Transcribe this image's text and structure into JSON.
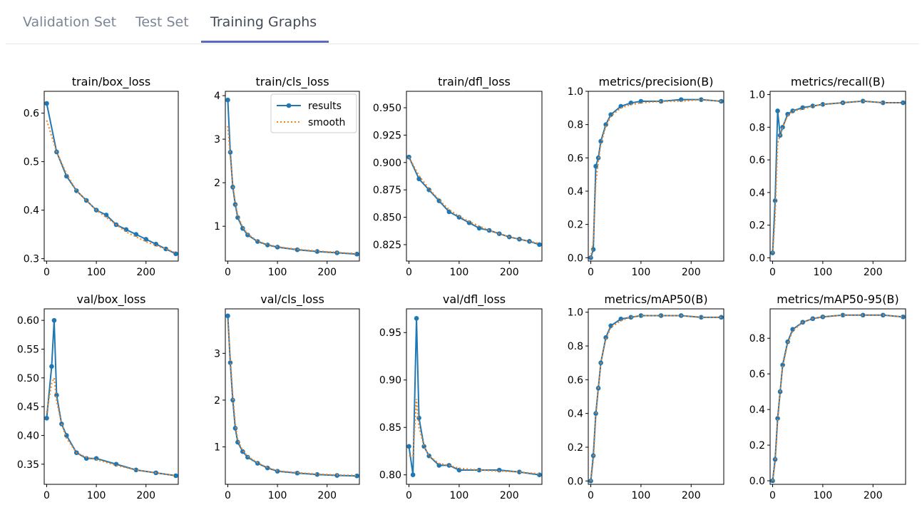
{
  "tabs": [
    {
      "label": "Validation Set"
    },
    {
      "label": "Test Set"
    },
    {
      "label": "Training Graphs",
      "active": true
    }
  ],
  "colors": {
    "results": "#1f77b4",
    "smooth": "#ff7f0e",
    "tab_active_underline": "#5b69c3"
  },
  "chart_data": [
    {
      "type": "line",
      "title": "train/box_loss",
      "xlim": [
        -5,
        265
      ],
      "ylim": [
        0.295,
        0.645
      ],
      "xticks": [
        "0",
        "100",
        "200"
      ],
      "yticks": [
        "0.3",
        "0.4",
        "0.5",
        "0.6"
      ],
      "x": [
        0,
        20,
        40,
        60,
        80,
        100,
        120,
        140,
        160,
        180,
        200,
        220,
        240,
        260
      ],
      "series": [
        {
          "name": "results",
          "values": [
            0.62,
            0.52,
            0.47,
            0.44,
            0.42,
            0.4,
            0.39,
            0.37,
            0.36,
            0.35,
            0.34,
            0.33,
            0.32,
            0.31
          ]
        },
        {
          "name": "smooth",
          "values": [
            0.585,
            0.52,
            0.475,
            0.44,
            0.42,
            0.4,
            0.385,
            0.37,
            0.355,
            0.345,
            0.335,
            0.327,
            0.32,
            0.312
          ]
        }
      ]
    },
    {
      "type": "line",
      "title": "train/cls_loss",
      "xlim": [
        -5,
        265
      ],
      "ylim": [
        0.2,
        4.1
      ],
      "xticks": [
        "0",
        "100",
        "200"
      ],
      "yticks": [
        "1",
        "2",
        "3",
        "4"
      ],
      "legend": {
        "entries": [
          "results",
          "smooth"
        ],
        "position": "upper right"
      },
      "x": [
        0,
        5,
        10,
        15,
        20,
        30,
        40,
        60,
        80,
        100,
        140,
        180,
        220,
        260
      ],
      "series": [
        {
          "name": "results",
          "values": [
            3.9,
            2.7,
            1.9,
            1.5,
            1.2,
            0.95,
            0.8,
            0.65,
            0.57,
            0.52,
            0.46,
            0.42,
            0.39,
            0.36
          ]
        },
        {
          "name": "smooth",
          "values": [
            3.3,
            2.6,
            1.95,
            1.55,
            1.25,
            0.98,
            0.82,
            0.66,
            0.58,
            0.53,
            0.47,
            0.43,
            0.4,
            0.37
          ]
        }
      ]
    },
    {
      "type": "line",
      "title": "train/dfl_loss",
      "xlim": [
        -5,
        265
      ],
      "ylim": [
        0.81,
        0.965
      ],
      "xticks": [
        "0",
        "100",
        "200"
      ],
      "yticks": [
        "0.825",
        "0.850",
        "0.875",
        "0.900",
        "0.925",
        "0.950"
      ],
      "x": [
        0,
        20,
        40,
        60,
        80,
        100,
        120,
        140,
        160,
        180,
        200,
        220,
        240,
        260
      ],
      "series": [
        {
          "name": "results",
          "values": [
            0.905,
            0.885,
            0.875,
            0.865,
            0.855,
            0.85,
            0.845,
            0.84,
            0.838,
            0.835,
            0.832,
            0.83,
            0.828,
            0.825
          ]
        },
        {
          "name": "smooth",
          "values": [
            0.905,
            0.888,
            0.876,
            0.866,
            0.857,
            0.851,
            0.846,
            0.842,
            0.838,
            0.835,
            0.832,
            0.83,
            0.828,
            0.826
          ]
        }
      ]
    },
    {
      "type": "line",
      "title": "metrics/precision(B)",
      "xlim": [
        -5,
        265
      ],
      "ylim": [
        -0.02,
        1.0
      ],
      "xticks": [
        "0",
        "100",
        "200"
      ],
      "yticks": [
        "0.0",
        "0.2",
        "0.4",
        "0.6",
        "0.8",
        "1.0"
      ],
      "x": [
        0,
        5,
        10,
        15,
        20,
        30,
        40,
        60,
        80,
        100,
        140,
        180,
        220,
        260
      ],
      "series": [
        {
          "name": "results",
          "values": [
            0.0,
            0.05,
            0.55,
            0.6,
            0.7,
            0.8,
            0.86,
            0.91,
            0.93,
            0.94,
            0.94,
            0.95,
            0.95,
            0.94
          ]
        },
        {
          "name": "smooth",
          "values": [
            0.0,
            0.1,
            0.45,
            0.58,
            0.68,
            0.79,
            0.85,
            0.9,
            0.92,
            0.93,
            0.94,
            0.94,
            0.95,
            0.94
          ]
        }
      ]
    },
    {
      "type": "line",
      "title": "metrics/recall(B)",
      "xlim": [
        -5,
        265
      ],
      "ylim": [
        -0.02,
        1.02
      ],
      "xticks": [
        "0",
        "100",
        "200"
      ],
      "yticks": [
        "0.0",
        "0.2",
        "0.4",
        "0.6",
        "0.8",
        "1.0"
      ],
      "x": [
        0,
        5,
        10,
        15,
        20,
        30,
        40,
        60,
        80,
        100,
        140,
        180,
        220,
        260
      ],
      "series": [
        {
          "name": "results",
          "values": [
            0.03,
            0.35,
            0.9,
            0.75,
            0.8,
            0.88,
            0.9,
            0.92,
            0.93,
            0.94,
            0.95,
            0.96,
            0.95,
            0.95
          ]
        },
        {
          "name": "smooth",
          "values": [
            0.03,
            0.25,
            0.7,
            0.75,
            0.8,
            0.87,
            0.9,
            0.91,
            0.93,
            0.94,
            0.95,
            0.96,
            0.95,
            0.95
          ]
        }
      ]
    },
    {
      "type": "line",
      "title": "val/box_loss",
      "xlim": [
        -5,
        265
      ],
      "ylim": [
        0.315,
        0.62
      ],
      "xticks": [
        "0",
        "100",
        "200"
      ],
      "yticks": [
        "0.35",
        "0.40",
        "0.45",
        "0.50",
        "0.55",
        "0.60"
      ],
      "x": [
        0,
        10,
        15,
        20,
        30,
        40,
        60,
        80,
        100,
        140,
        180,
        220,
        260
      ],
      "series": [
        {
          "name": "results",
          "values": [
            0.43,
            0.52,
            0.6,
            0.47,
            0.42,
            0.4,
            0.37,
            0.36,
            0.36,
            0.35,
            0.34,
            0.335,
            0.33
          ]
        },
        {
          "name": "smooth",
          "values": [
            0.44,
            0.49,
            0.5,
            0.46,
            0.42,
            0.395,
            0.37,
            0.362,
            0.358,
            0.348,
            0.34,
            0.335,
            0.33
          ]
        }
      ]
    },
    {
      "type": "line",
      "title": "val/cls_loss",
      "xlim": [
        -5,
        265
      ],
      "ylim": [
        0.2,
        3.95
      ],
      "xticks": [
        "0",
        "100",
        "200"
      ],
      "yticks": [
        "1",
        "2",
        "3"
      ],
      "x": [
        0,
        5,
        10,
        15,
        20,
        30,
        40,
        60,
        80,
        100,
        140,
        180,
        220,
        260
      ],
      "series": [
        {
          "name": "results",
          "values": [
            3.8,
            2.8,
            2.0,
            1.4,
            1.1,
            0.9,
            0.78,
            0.65,
            0.55,
            0.48,
            0.44,
            0.41,
            0.39,
            0.38
          ]
        },
        {
          "name": "smooth",
          "values": [
            3.7,
            2.9,
            2.1,
            1.5,
            1.15,
            0.92,
            0.8,
            0.66,
            0.56,
            0.49,
            0.45,
            0.42,
            0.4,
            0.39
          ]
        }
      ]
    },
    {
      "type": "line",
      "title": "val/dfl_loss",
      "xlim": [
        -5,
        265
      ],
      "ylim": [
        0.79,
        0.975
      ],
      "xticks": [
        "0",
        "100",
        "200"
      ],
      "yticks": [
        "0.80",
        "0.85",
        "0.90",
        "0.95"
      ],
      "x": [
        0,
        8,
        15,
        20,
        30,
        40,
        60,
        80,
        100,
        140,
        180,
        220,
        260
      ],
      "series": [
        {
          "name": "results",
          "values": [
            0.83,
            0.8,
            0.965,
            0.86,
            0.83,
            0.82,
            0.81,
            0.81,
            0.805,
            0.805,
            0.805,
            0.803,
            0.8
          ]
        },
        {
          "name": "smooth",
          "values": [
            0.82,
            0.82,
            0.88,
            0.85,
            0.83,
            0.82,
            0.812,
            0.81,
            0.807,
            0.805,
            0.804,
            0.803,
            0.801
          ]
        }
      ]
    },
    {
      "type": "line",
      "title": "metrics/mAP50(B)",
      "xlim": [
        -5,
        265
      ],
      "ylim": [
        -0.02,
        1.02
      ],
      "xticks": [
        "0",
        "100",
        "200"
      ],
      "yticks": [
        "0.0",
        "0.2",
        "0.4",
        "0.6",
        "0.8",
        "1.0"
      ],
      "x": [
        0,
        5,
        10,
        15,
        20,
        30,
        40,
        60,
        80,
        100,
        140,
        180,
        220,
        260
      ],
      "series": [
        {
          "name": "results",
          "values": [
            0.0,
            0.15,
            0.4,
            0.55,
            0.7,
            0.85,
            0.92,
            0.96,
            0.97,
            0.98,
            0.98,
            0.98,
            0.97,
            0.97
          ]
        },
        {
          "name": "smooth",
          "values": [
            0.0,
            0.12,
            0.38,
            0.55,
            0.7,
            0.84,
            0.91,
            0.95,
            0.97,
            0.98,
            0.98,
            0.98,
            0.97,
            0.97
          ]
        }
      ]
    },
    {
      "type": "line",
      "title": "metrics/mAP50-95(B)",
      "xlim": [
        -5,
        265
      ],
      "ylim": [
        -0.02,
        0.965
      ],
      "xticks": [
        "0",
        "100",
        "200"
      ],
      "yticks": [
        "0.0",
        "0.2",
        "0.4",
        "0.6",
        "0.8"
      ],
      "x": [
        0,
        5,
        10,
        15,
        20,
        30,
        40,
        60,
        80,
        100,
        140,
        180,
        220,
        260
      ],
      "series": [
        {
          "name": "results",
          "values": [
            0.0,
            0.12,
            0.35,
            0.5,
            0.65,
            0.78,
            0.85,
            0.89,
            0.91,
            0.92,
            0.93,
            0.93,
            0.93,
            0.92
          ]
        },
        {
          "name": "smooth",
          "values": [
            0.0,
            0.1,
            0.33,
            0.5,
            0.64,
            0.77,
            0.84,
            0.89,
            0.91,
            0.92,
            0.93,
            0.93,
            0.93,
            0.92
          ]
        }
      ]
    }
  ]
}
